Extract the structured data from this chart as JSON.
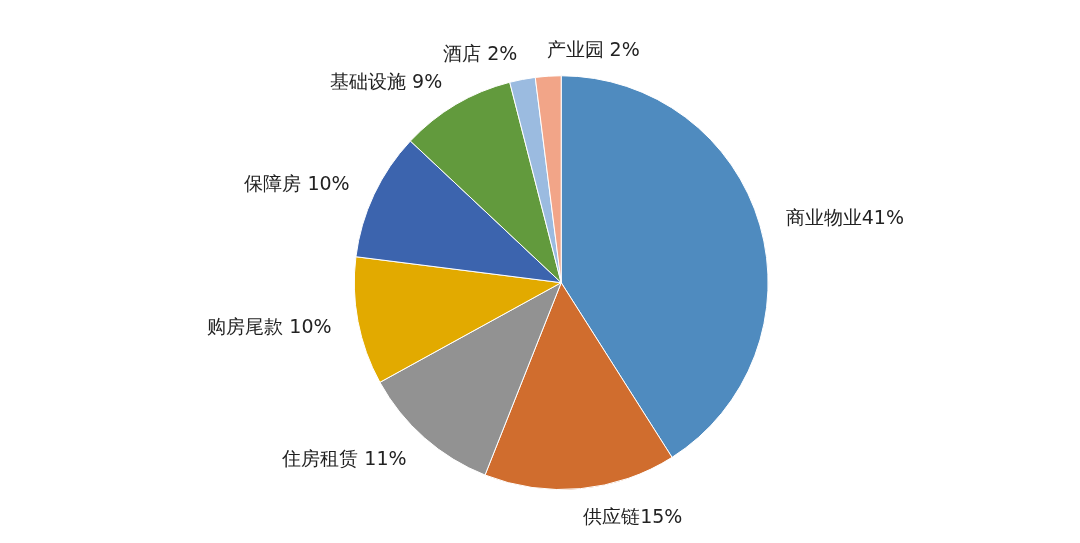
{
  "chart_data": {
    "type": "pie",
    "categories": [
      "商业物业",
      "供应链",
      "住房租赁",
      "购房尾款",
      "保障房",
      "基础设施",
      "酒店",
      "产业园"
    ],
    "values": [
      41,
      15,
      11,
      10,
      10,
      9,
      2,
      2
    ],
    "colors": [
      "#4f8bbf",
      "#d06d2e",
      "#929292",
      "#e2aa00",
      "#3c64ae",
      "#629a3d",
      "#9bbbe0",
      "#f2a588"
    ],
    "value_labels": [
      "41%",
      "15%",
      " 11%",
      " 10%",
      " 10%",
      " 9%",
      " 2%",
      " 2%"
    ],
    "legend": false
  }
}
